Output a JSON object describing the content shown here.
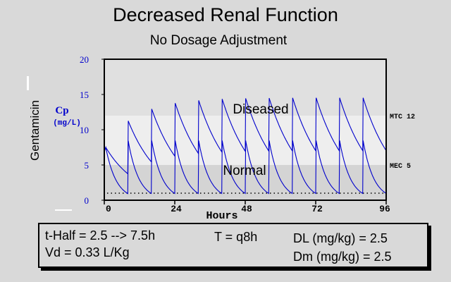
{
  "title": "Decreased Renal Function",
  "subtitle": "No Dosage Adjustment",
  "chart_data": {
    "type": "line",
    "title": "Decreased Renal Function",
    "subtitle": "No Dosage Adjustment",
    "ylabel_left": "Gentamicin",
    "ylabel_cp": "Cp",
    "ylabel_units": "(mg/L)",
    "xlabel": "Hours",
    "xlim": [
      0,
      96
    ],
    "ylim": [
      0,
      20
    ],
    "x_ticks": [
      0,
      24,
      48,
      72,
      96
    ],
    "y_ticks": [
      0,
      5,
      10,
      15,
      20
    ],
    "grid": false,
    "bands": [
      {
        "label": "MTC 12",
        "value": 12
      },
      {
        "label": "MEC 5",
        "value": 5
      }
    ],
    "region_labels": [
      "Diseased",
      "Normal"
    ],
    "dosing_interval_h": 8,
    "infusion_h": 1,
    "series": [
      {
        "name": "Diseased",
        "half_life_h": 7.5,
        "start_peak": 7.5,
        "peaks_every_dose": [
          7.5,
          10.9,
          12.7,
          13.6,
          14.0,
          14.3,
          14.4,
          14.4,
          14.4,
          14.5,
          14.5,
          14.5
        ],
        "dose_increment": 7.5
      },
      {
        "name": "Normal",
        "half_life_h": 2.5,
        "start_peak": 7.5,
        "dose_increment": 7.5
      }
    ],
    "reference_line": {
      "style": "dotted",
      "value": 1
    }
  },
  "info": {
    "thalf": "t-Half = 2.5 --> 7.5h",
    "vd": "Vd = 0.33 L/Kg",
    "tau": "T = q8h",
    "dl": "DL (mg/kg) = 2.5",
    "dm": "Dm (mg/kg) = 2.5"
  },
  "colors": {
    "background": "#d9d9d9",
    "plot_high": "#e0e0e0",
    "plot_mid": "#eeeeee",
    "plot_low": "#d4d4d4",
    "curve": "#0000cc",
    "axis_label_blue": "#0000cc"
  }
}
